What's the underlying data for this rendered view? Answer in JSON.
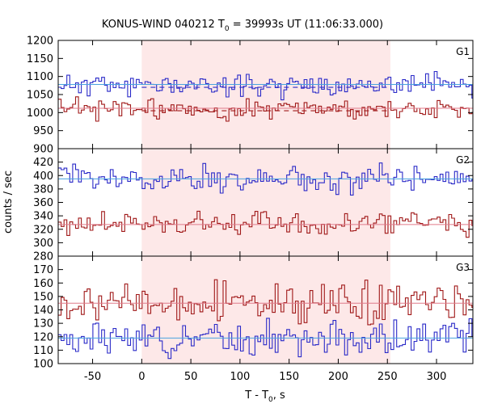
{
  "title": {
    "main": "KONUS-WIND 040212 T",
    "sub": "0",
    "rest": " = 39993s UT (11:06:33.000)"
  },
  "xaxis": {
    "label_main": "T - T",
    "label_sub": "0",
    "label_rest": ", s"
  },
  "ylabel": "counts / sec",
  "colors": {
    "blue_series": "#2a2ac8",
    "red_series": "#a01818",
    "blue_fit": "#4aa3df",
    "red_fit": "#e07a8a",
    "shade": "#fde8e8",
    "frame": "#000000"
  },
  "chart_data": {
    "type": "line",
    "style": "step histogram",
    "xlim": [
      -85,
      337
    ],
    "x_ticks": [
      -50,
      0,
      50,
      100,
      150,
      200,
      250,
      300
    ],
    "x_tick_labels": [
      "-50",
      "0",
      "50",
      "100",
      "150",
      "200",
      "250",
      "300"
    ],
    "shaded_interval": [
      0,
      253
    ],
    "bin_width": 2.944,
    "x_start": -85,
    "panels": [
      {
        "label": "G1",
        "ylim": [
          900,
          1200
        ],
        "y_ticks": [
          900,
          950,
          1000,
          1050,
          1100,
          1150,
          1200
        ],
        "y_tick_labels": [
          "900",
          "950",
          "1000",
          "1050",
          "1100",
          "1150",
          "1200"
        ],
        "series": [
          {
            "color": "blue",
            "mean": 1076,
            "amp": 15,
            "seed": 11,
            "fit": 1078,
            "fit_dashed_in_interval": 1070
          },
          {
            "color": "red",
            "mean": 1010,
            "amp": 14,
            "seed": 23,
            "fit": 1012,
            "fit_dashed_in_interval": 1005
          }
        ]
      },
      {
        "label": "G2",
        "ylim": [
          280,
          440
        ],
        "y_ticks": [
          280,
          300,
          320,
          340,
          360,
          380,
          400,
          420
        ],
        "y_tick_labels": [
          "280",
          "300",
          "320",
          "340",
          "360",
          "380",
          "400",
          "420"
        ],
        "series": [
          {
            "color": "blue",
            "mean": 395,
            "amp": 10,
            "seed": 37,
            "fit": 395
          },
          {
            "color": "red",
            "mean": 327,
            "amp": 9,
            "seed": 41,
            "fit": 327
          }
        ]
      },
      {
        "label": "G3",
        "ylim": [
          100,
          180
        ],
        "y_ticks": [
          100,
          110,
          120,
          130,
          140,
          150,
          160,
          170
        ],
        "y_tick_labels": [
          "100",
          "110",
          "120",
          "130",
          "140",
          "150",
          "160",
          "170"
        ],
        "series": [
          {
            "color": "red",
            "mean": 145,
            "amp": 7,
            "seed": 53,
            "fit": 145
          },
          {
            "color": "blue",
            "mean": 119,
            "amp": 6,
            "seed": 67,
            "fit": 119
          }
        ]
      }
    ]
  }
}
